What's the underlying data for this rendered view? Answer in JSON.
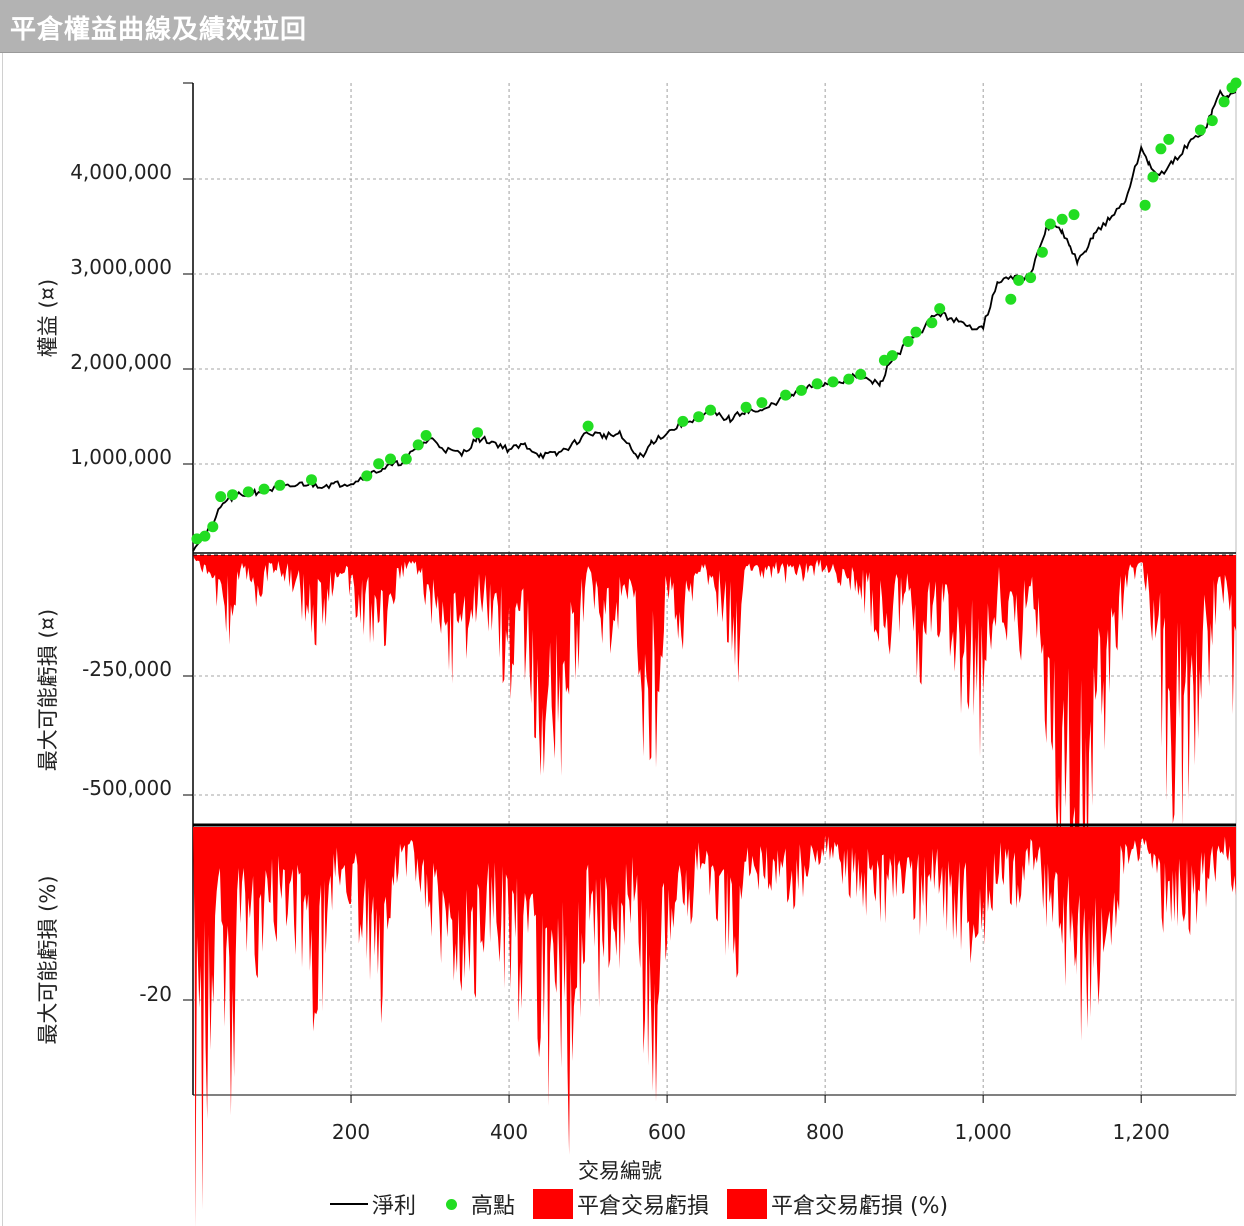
{
  "window": {
    "title": "平倉權益曲線及績效拉回"
  },
  "colors": {
    "equity_line": "#000000",
    "highs": "#22dd22",
    "drawdown": "#ff0000",
    "titlebar": "#b3b3b3"
  },
  "axes": {
    "x_label": "交易編號",
    "x_ticks": [
      "200",
      "400",
      "600",
      "800",
      "1,000",
      "1,200"
    ],
    "top_ylabel": "權益 (¤)",
    "top_yticks": [
      "1,000,000",
      "2,000,000",
      "3,000,000",
      "4,000,000"
    ],
    "mid_ylabel": "最大可能虧損 (¤)",
    "mid_yticks": [
      "-250,000",
      "-500,000"
    ],
    "bottom_ylabel": "最大可能虧損 (%)",
    "bottom_yticks": [
      "-20"
    ]
  },
  "legend": {
    "net": "淨利",
    "highs": "高點",
    "dd_abs": "平倉交易虧損",
    "dd_pct": "平倉交易虧損 (%)"
  },
  "chart_data": [
    {
      "type": "line",
      "title": "平倉權益曲線及績效拉回",
      "xlabel": "交易編號",
      "ylabel": "權益 (¤)",
      "xlim": [
        0,
        1320
      ],
      "ylim": [
        0,
        5000000
      ],
      "series": [
        {
          "name": "淨利",
          "x": [
            0,
            20,
            40,
            60,
            80,
            100,
            120,
            140,
            160,
            180,
            200,
            220,
            240,
            260,
            280,
            300,
            320,
            340,
            360,
            380,
            400,
            420,
            440,
            460,
            480,
            500,
            520,
            540,
            560,
            570,
            580,
            600,
            620,
            640,
            660,
            680,
            700,
            720,
            740,
            760,
            780,
            800,
            820,
            840,
            860,
            870,
            880,
            900,
            920,
            940,
            960,
            980,
            1000,
            1020,
            1040,
            1060,
            1080,
            1090,
            1100,
            1110,
            1120,
            1130,
            1140,
            1160,
            1180,
            1200,
            1210,
            1220,
            1240,
            1260,
            1280,
            1290,
            1300,
            1310,
            1320
          ],
          "y": [
            50000,
            250000,
            550000,
            620000,
            650000,
            680000,
            700000,
            740000,
            720000,
            730000,
            750000,
            820000,
            900000,
            950000,
            1080000,
            1220000,
            1100000,
            1050000,
            1220000,
            1180000,
            1100000,
            1150000,
            1040000,
            1050000,
            1150000,
            1280000,
            1250000,
            1260000,
            1050000,
            1020000,
            1180000,
            1280000,
            1380000,
            1450000,
            1480000,
            1420000,
            1520000,
            1500000,
            1620000,
            1680000,
            1760000,
            1800000,
            1830000,
            1880000,
            1820000,
            1800000,
            2000000,
            2200000,
            2350000,
            2550000,
            2500000,
            2400000,
            2420000,
            2900000,
            2930000,
            2950000,
            3450000,
            3500000,
            3400000,
            3250000,
            3100000,
            3200000,
            3400000,
            3550000,
            3750000,
            4300000,
            4150000,
            4000000,
            4150000,
            4350000,
            4500000,
            4700000,
            4900000,
            4850000,
            4900000
          ]
        },
        {
          "name": "高點",
          "x": [
            5,
            15,
            25,
            35,
            50,
            70,
            90,
            110,
            150,
            220,
            235,
            250,
            270,
            285,
            295,
            360,
            500,
            620,
            640,
            655,
            700,
            720,
            750,
            770,
            790,
            810,
            830,
            845,
            875,
            885,
            905,
            915,
            935,
            945,
            1035,
            1045,
            1060,
            1075,
            1085,
            1100,
            1115,
            1205,
            1215,
            1225,
            1235,
            1275,
            1290,
            1305,
            1315,
            1320
          ],
          "y": [
            150000,
            180000,
            280000,
            600000,
            620000,
            650000,
            680000,
            720000,
            780000,
            820000,
            950000,
            1000000,
            1000000,
            1150000,
            1250000,
            1280000,
            1350000,
            1400000,
            1450000,
            1520000,
            1550000,
            1600000,
            1680000,
            1730000,
            1800000,
            1820000,
            1850000,
            1900000,
            2050000,
            2100000,
            2250000,
            2350000,
            2450000,
            2600000,
            2700000,
            2900000,
            2930000,
            3200000,
            3500000,
            3550000,
            3600000,
            3700000,
            4000000,
            4300000,
            4400000,
            4500000,
            4600000,
            4800000,
            4950000,
            5000000
          ]
        }
      ]
    },
    {
      "type": "area",
      "ylabel": "最大可能虧損 (¤)",
      "xlim": [
        0,
        1320
      ],
      "ylim": [
        -580000,
        0
      ],
      "series": [
        {
          "name": "平倉交易虧損",
          "x": [
            0,
            20,
            40,
            50,
            60,
            80,
            100,
            120,
            160,
            180,
            200,
            240,
            260,
            280,
            300,
            340,
            360,
            380,
            400,
            420,
            440,
            460,
            480,
            500,
            520,
            540,
            560,
            570,
            580,
            600,
            620,
            640,
            660,
            690,
            700,
            720,
            760,
            800,
            840,
            880,
            900,
            920,
            940,
            960,
            980,
            1000,
            1020,
            1040,
            1060,
            1080,
            1100,
            1110,
            1120,
            1130,
            1140,
            1160,
            1180,
            1200,
            1220,
            1240,
            1260,
            1280,
            1300,
            1310,
            1320
          ],
          "y": [
            0,
            -50000,
            -80000,
            -130000,
            -20000,
            -60000,
            -20000,
            -40000,
            -120000,
            -30000,
            -60000,
            -150000,
            -30000,
            -20000,
            -80000,
            -180000,
            -90000,
            -100000,
            -200000,
            -170000,
            -260000,
            -280000,
            -230000,
            -20000,
            -130000,
            -90000,
            -60000,
            -300000,
            -320000,
            -60000,
            -150000,
            -20000,
            -60000,
            -160000,
            -20000,
            -30000,
            -40000,
            -20000,
            -60000,
            -120000,
            -80000,
            -160000,
            -100000,
            -160000,
            -240000,
            -230000,
            -60000,
            -180000,
            -40000,
            -250000,
            -380000,
            -520000,
            -560000,
            -450000,
            -420000,
            -170000,
            -60000,
            -20000,
            -150000,
            -390000,
            -280000,
            -200000,
            -80000,
            -50000,
            -350000
          ]
        }
      ]
    },
    {
      "type": "area",
      "ylabel": "最大可能虧損 (%)",
      "xlim": [
        0,
        1320
      ],
      "ylim": [
        -28,
        0
      ],
      "series": [
        {
          "name": "平倉交易虧損 (%)",
          "x": [
            0,
            3,
            6,
            12,
            20,
            30,
            40,
            50,
            60,
            80,
            100,
            120,
            160,
            180,
            200,
            240,
            260,
            280,
            300,
            340,
            360,
            380,
            400,
            420,
            440,
            460,
            480,
            500,
            520,
            540,
            560,
            570,
            580,
            600,
            620,
            640,
            660,
            690,
            700,
            720,
            760,
            800,
            840,
            880,
            900,
            920,
            940,
            960,
            980,
            1000,
            1020,
            1040,
            1060,
            1080,
            1100,
            1120,
            1130,
            1140,
            1160,
            1180,
            1200,
            1220,
            1240,
            1260,
            1280,
            1300,
            1310,
            1320
          ],
          "y": [
            0,
            -28,
            -18,
            -25,
            -15,
            -8,
            -12,
            -21,
            -6,
            -10,
            -7,
            -6,
            -14,
            -4,
            -5,
            -13,
            -4,
            -3,
            -7,
            -12,
            -11,
            -6,
            -11,
            -12,
            -16,
            -19,
            -20,
            -6,
            -13,
            -9,
            -5,
            -20,
            -22,
            -8,
            -10,
            -3,
            -5,
            -11,
            -3,
            -4,
            -5,
            -2,
            -5,
            -6,
            -4,
            -7,
            -5,
            -7,
            -9,
            -8,
            -3,
            -6,
            -2,
            -6,
            -9,
            -12,
            -14,
            -11,
            -9,
            -3,
            -2,
            -5,
            -9,
            -7,
            -5,
            -3,
            -2,
            -7
          ]
        }
      ]
    }
  ]
}
